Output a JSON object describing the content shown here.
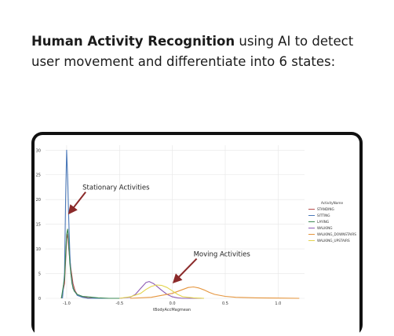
{
  "intro": {
    "bold": "Human Activity Recognition",
    "rest": " using AI to detect user movement and differentiate into 6 states:"
  },
  "chart_data": {
    "type": "line",
    "xlabel": "tBodyAccMagmean",
    "ylabel": "",
    "x_ticks": [
      "-1.0",
      "-0.5",
      "0.0",
      "0.5",
      "1.0"
    ],
    "y_ticks": [
      "0",
      "5",
      "10",
      "15",
      "20",
      "25",
      "30"
    ],
    "xlim": [
      -1.2,
      1.25
    ],
    "ylim": [
      0,
      31
    ],
    "grid": true,
    "legend_title": "ActivityName",
    "legend_placement": "right",
    "series": [
      {
        "name": "STANDING",
        "color": "#b84c4c",
        "x": [
          -1.05,
          -1.02,
          -1.0,
          -0.99,
          -0.98,
          -0.96,
          -0.94,
          -0.92,
          -0.9,
          -0.85,
          -0.8,
          -0.7,
          -0.6,
          -0.5
        ],
        "y": [
          0,
          3,
          12,
          13,
          10,
          6,
          3,
          1.5,
          0.8,
          0.3,
          0.1,
          0,
          0,
          0
        ]
      },
      {
        "name": "SITTING",
        "color": "#4a78b8",
        "x": [
          -1.04,
          -1.02,
          -1.01,
          -1.0,
          -0.99,
          -0.98,
          -0.97,
          -0.96,
          -0.94,
          -0.9,
          -0.85,
          -0.8,
          -0.6,
          -0.5
        ],
        "y": [
          0,
          5,
          20,
          30,
          24,
          16,
          9,
          5,
          2,
          0.6,
          0.2,
          0,
          0,
          0
        ]
      },
      {
        "name": "LAYING",
        "color": "#3d8a55",
        "x": [
          -1.05,
          -1.02,
          -1.0,
          -0.99,
          -0.98,
          -0.97,
          -0.95,
          -0.93,
          -0.9,
          -0.85,
          -0.8,
          -0.7,
          -0.6,
          -0.5
        ],
        "y": [
          0,
          4,
          13,
          14,
          11,
          7,
          3,
          1.5,
          0.8,
          0.4,
          0.3,
          0.1,
          0,
          0
        ]
      },
      {
        "name": "WALKING",
        "color": "#8e5cb5",
        "x": [
          -0.5,
          -0.4,
          -0.35,
          -0.3,
          -0.25,
          -0.22,
          -0.18,
          -0.15,
          -0.1,
          -0.05,
          0.0,
          0.05,
          0.1,
          0.2,
          0.3
        ],
        "y": [
          0,
          0.2,
          0.8,
          2,
          3.2,
          3.4,
          3.0,
          2.5,
          1.6,
          0.8,
          0.3,
          0.1,
          0,
          0,
          0
        ]
      },
      {
        "name": "WALKING_DOWNSTAIRS",
        "color": "#e5953d",
        "x": [
          -0.4,
          -0.2,
          -0.1,
          0.0,
          0.1,
          0.15,
          0.2,
          0.25,
          0.3,
          0.35,
          0.4,
          0.5,
          0.6,
          0.8,
          1.0,
          1.2
        ],
        "y": [
          0,
          0.2,
          0.6,
          1.0,
          1.8,
          2.2,
          2.3,
          2.1,
          1.7,
          1.2,
          0.8,
          0.4,
          0.2,
          0.1,
          0.05,
          0
        ]
      },
      {
        "name": "WALKING_UPSTAIRS",
        "color": "#e3d34d",
        "x": [
          -0.5,
          -0.4,
          -0.3,
          -0.25,
          -0.2,
          -0.15,
          -0.1,
          -0.05,
          0.0,
          0.05,
          0.1,
          0.2,
          0.3
        ],
        "y": [
          0,
          0.3,
          1.0,
          1.8,
          2.4,
          2.7,
          2.6,
          2.2,
          1.5,
          0.8,
          0.3,
          0.1,
          0
        ]
      }
    ],
    "annotations": [
      {
        "text": "Stationary Activities",
        "x": -0.85,
        "y": 22,
        "arrow_to": [
          -0.99,
          17
        ]
      },
      {
        "text": "Moving Activities",
        "x": 0.2,
        "y": 8.5,
        "arrow_to": [
          0.0,
          3
        ]
      }
    ]
  }
}
